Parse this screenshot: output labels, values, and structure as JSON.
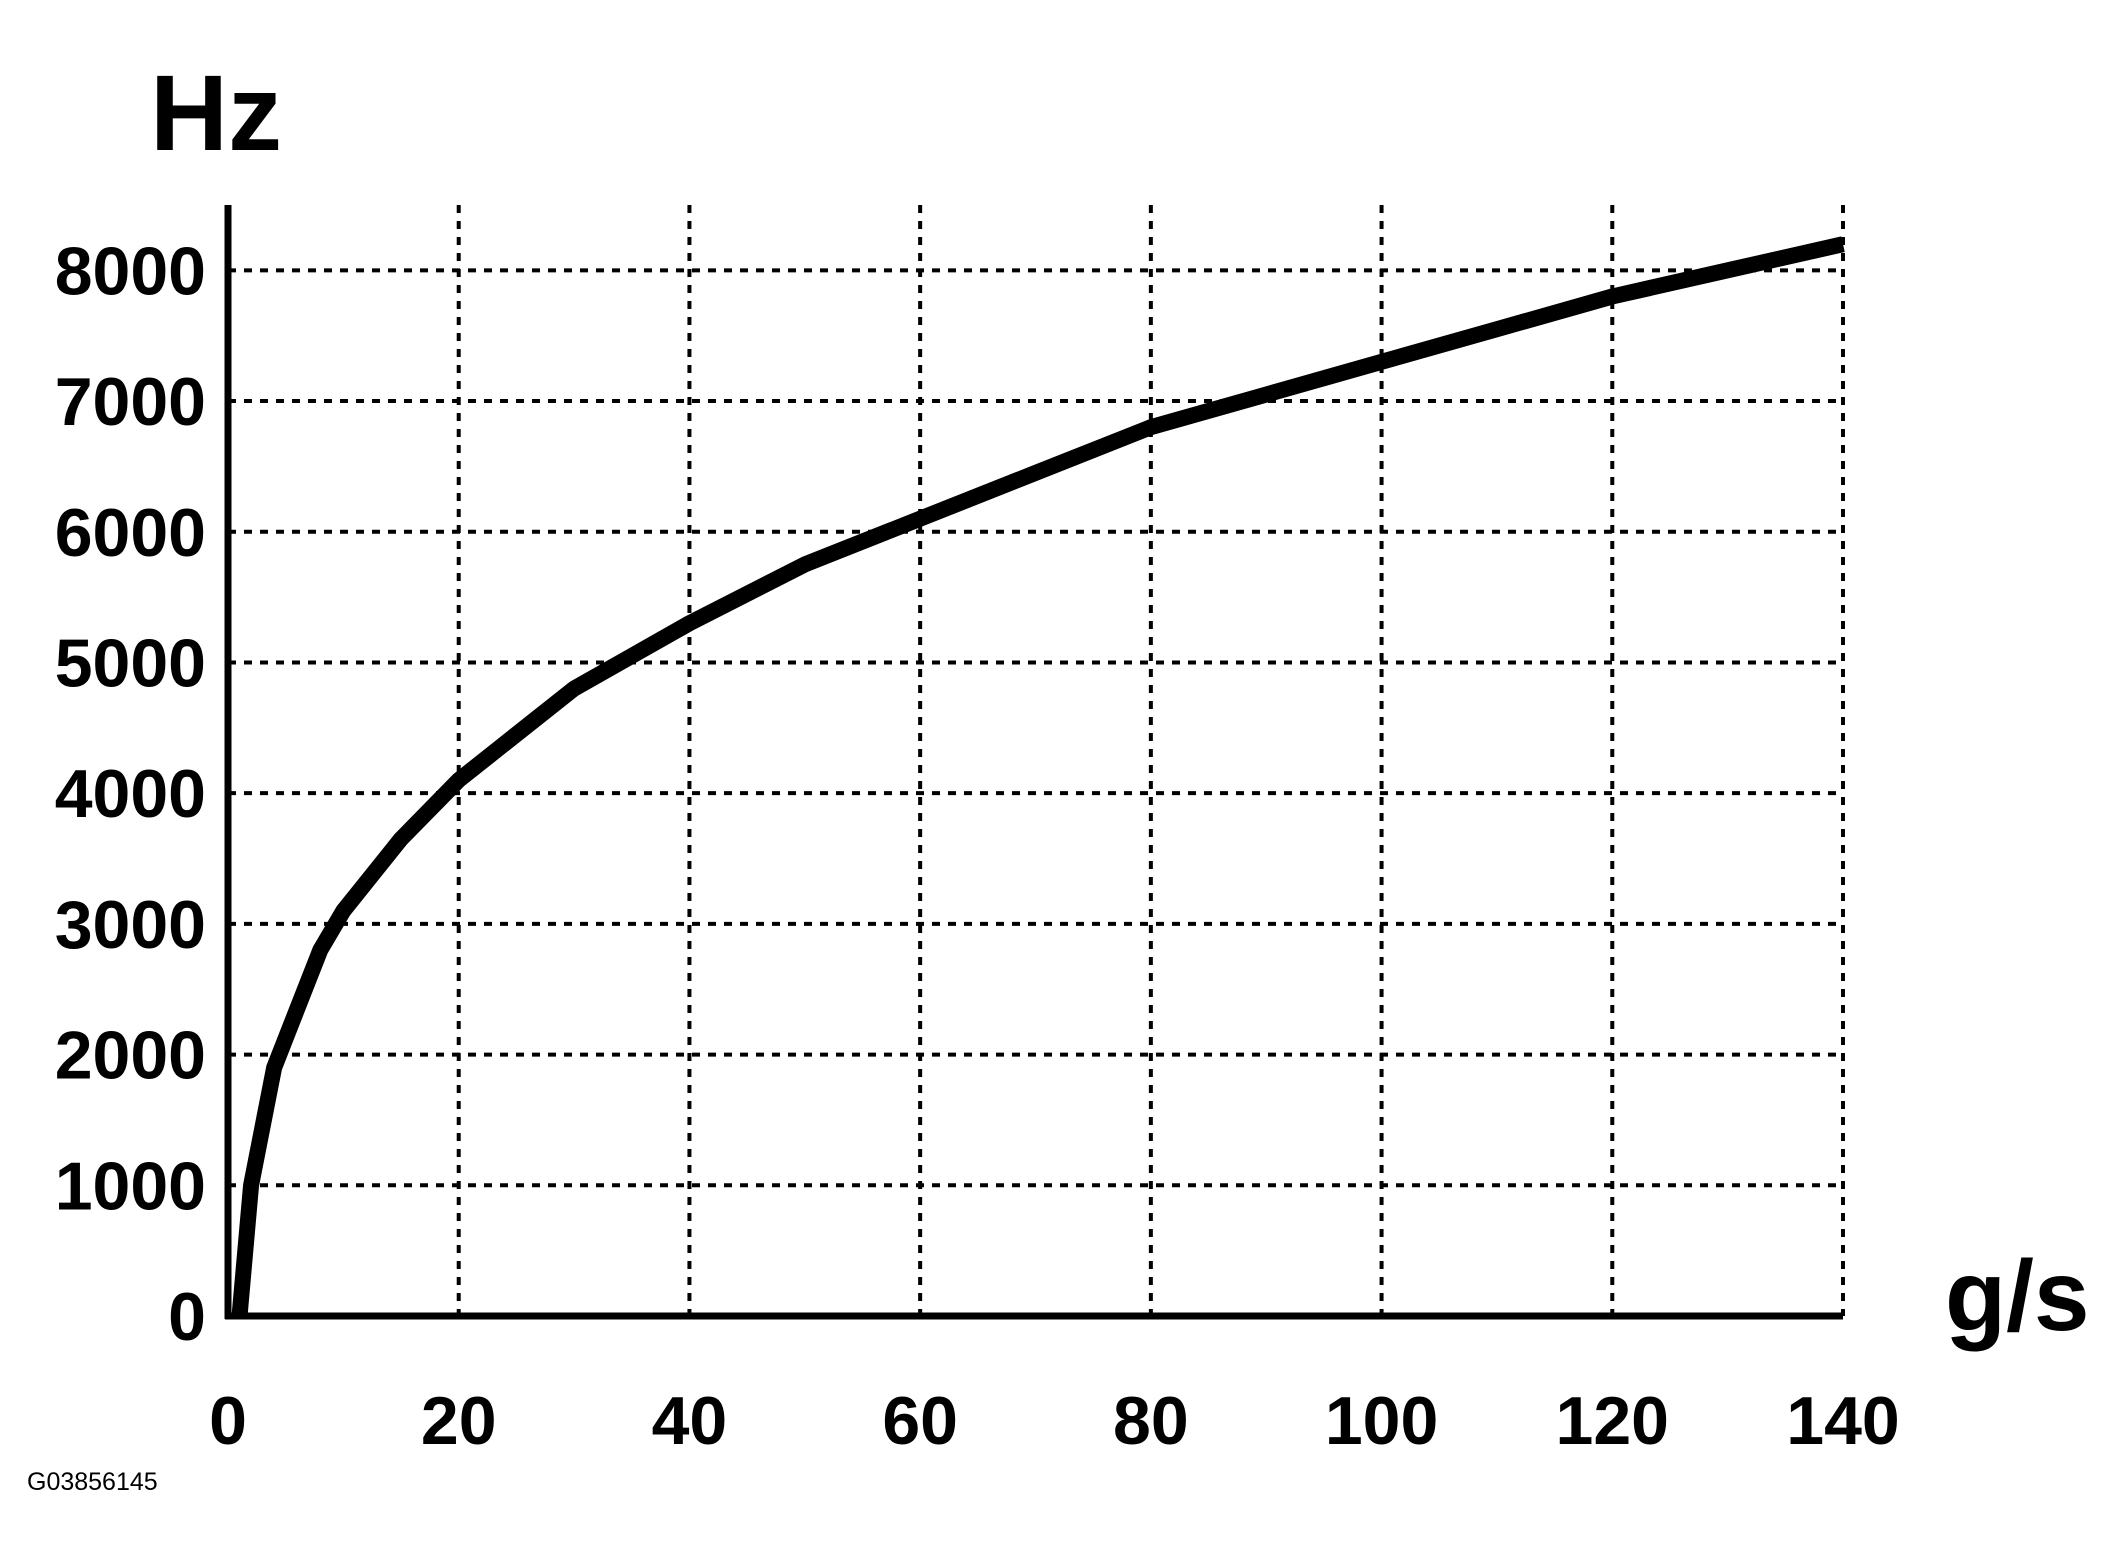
{
  "chart_data": {
    "type": "line",
    "y_label": "Hz",
    "x_label": "g/s",
    "annotation": "G03856145",
    "x": [
      1,
      2,
      4,
      8,
      10,
      15,
      20,
      30,
      40,
      50,
      60,
      70,
      80,
      90,
      100,
      110,
      120,
      130,
      140
    ],
    "series": [
      {
        "name": "Hz",
        "color": "#000000",
        "values": [
          0,
          1000,
          1900,
          2800,
          3100,
          3650,
          4100,
          4800,
          5300,
          5750,
          6100,
          6450,
          6800,
          7050,
          7300,
          7550,
          7800,
          8000,
          8200
        ]
      }
    ],
    "xlim": [
      0,
      140
    ],
    "ylim": [
      0,
      8500
    ],
    "xticks": [
      0,
      20,
      40,
      60,
      80,
      100,
      120,
      140
    ],
    "yticks": [
      0,
      1000,
      2000,
      3000,
      4000,
      5000,
      6000,
      7000,
      8000
    ],
    "grid": true
  }
}
